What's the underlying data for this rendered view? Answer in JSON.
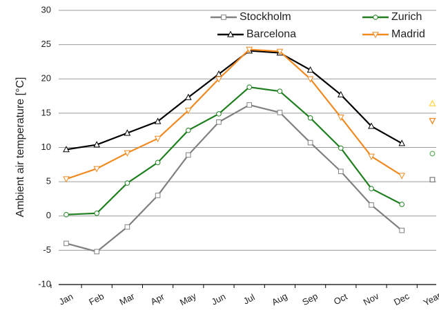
{
  "chart_data": {
    "type": "line",
    "y_label": "Ambient air temperature [°C]",
    "categories": [
      "Jan",
      "Feb",
      "Mar",
      "Apr",
      "May",
      "Jun",
      "Jul",
      "Aug",
      "Sep",
      "Oct",
      "Nov",
      "Dec",
      "Year"
    ],
    "connect_last": false,
    "series": [
      {
        "name": "Stockholm",
        "color": "#808080",
        "marker": "square",
        "last_color": "#808080",
        "values": [
          -4.0,
          -5.2,
          -1.6,
          3.0,
          8.9,
          13.7,
          16.2,
          15.1,
          10.7,
          6.5,
          1.6,
          -2.1,
          5.3
        ]
      },
      {
        "name": "Zurich",
        "color": "#1f7f1f",
        "marker": "circle",
        "last_color": "#66b266",
        "values": [
          0.2,
          0.4,
          4.8,
          7.8,
          12.5,
          14.9,
          18.8,
          18.2,
          14.3,
          9.9,
          4.0,
          1.7,
          9.1
        ]
      },
      {
        "name": "Barcelona",
        "color": "#000000",
        "marker": "triangle-up",
        "last_color": "#ffd84a",
        "values": [
          9.7,
          10.4,
          12.1,
          13.8,
          17.3,
          20.7,
          24.1,
          23.8,
          21.3,
          17.7,
          13.1,
          10.6,
          16.4
        ]
      },
      {
        "name": "Madrid",
        "color": "#f0891f",
        "marker": "triangle-down",
        "last_color": "#f0891f",
        "values": [
          5.4,
          6.9,
          9.2,
          11.3,
          15.4,
          20.0,
          24.3,
          24.0,
          20.0,
          14.4,
          8.7,
          5.9,
          13.9
        ]
      }
    ],
    "ylim": [
      -10,
      30
    ],
    "yticks": [
      -10,
      -5,
      0,
      5,
      10,
      15,
      20,
      25,
      30
    ],
    "grid": true,
    "legend": "top-right"
  }
}
